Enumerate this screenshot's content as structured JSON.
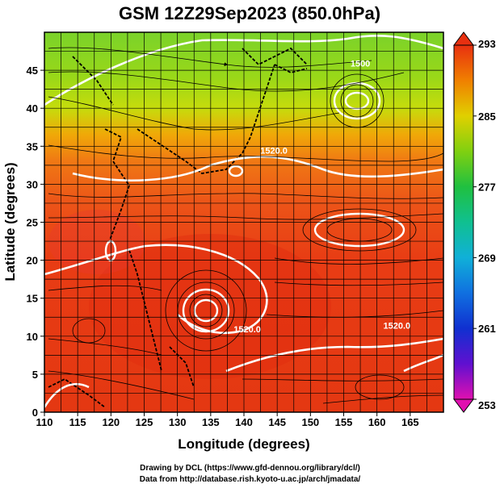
{
  "title": "GSM 12Z29Sep2023 (850.0hPa)",
  "chart_data": {
    "type": "heatmap",
    "title": "GSM 12Z29Sep2023 (850.0hPa)",
    "xlabel": "Longitude (degrees)",
    "ylabel": "Latitude  (degrees)",
    "xlim": [
      110,
      170
    ],
    "ylim": [
      0,
      50
    ],
    "x_ticks": [
      110,
      115,
      120,
      125,
      130,
      135,
      140,
      145,
      150,
      155,
      160,
      165
    ],
    "y_ticks": [
      0,
      5,
      10,
      15,
      20,
      25,
      30,
      35,
      40,
      45
    ],
    "grid": true,
    "overlay": "streamlines",
    "colorbar": {
      "min": 253,
      "max": 293,
      "ticks": [
        253,
        261,
        269,
        277,
        285,
        293
      ],
      "colors": [
        "#e010b0",
        "#6010d0",
        "#1030d0",
        "#1090e0",
        "#10c0c0",
        "#20c060",
        "#60d020",
        "#c0e000",
        "#f0c000",
        "#f08000",
        "#e83010"
      ]
    },
    "contour_labels": [
      {
        "text": "1500",
        "lon": 157.5,
        "lat": 45.5
      },
      {
        "text": "1520.0",
        "lon": 144.5,
        "lat": 34.0
      },
      {
        "text": "1520.0",
        "lon": 140.5,
        "lat": 10.5
      },
      {
        "text": "1520.0",
        "lon": 163.0,
        "lat": 11.0
      }
    ]
  },
  "credits": {
    "line1": "Drawing by DCL (https://www.gfd-dennou.org/library/dcl/)",
    "line2": "Data from http://database.rish.kyoto-u.ac.jp/arch/jmadata/"
  }
}
